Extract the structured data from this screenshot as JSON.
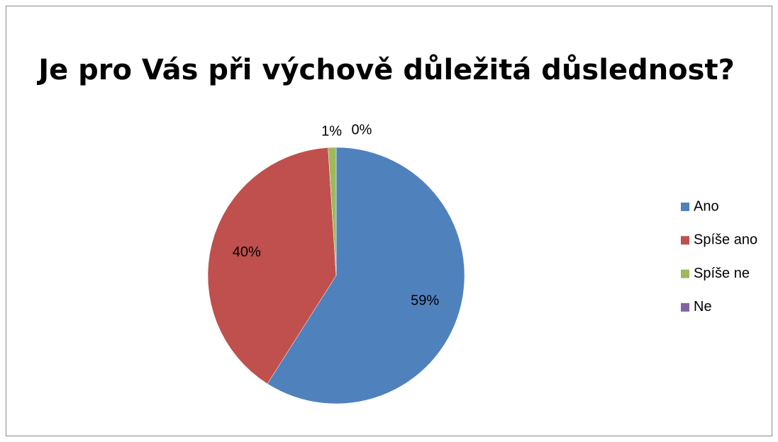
{
  "chart_data": {
    "type": "pie",
    "title": "Je pro Vás při výchově důležitá důslednost?",
    "categories": [
      "Ano",
      "Spíše ano",
      "Spíše ne",
      "Ne"
    ],
    "values": [
      59,
      40,
      1,
      0
    ],
    "value_labels": [
      "59%",
      "40%",
      "1%",
      "0%"
    ],
    "colors": [
      "#4f81bd",
      "#c0504d",
      "#9bbb59",
      "#8064a2"
    ],
    "legend": "right"
  }
}
